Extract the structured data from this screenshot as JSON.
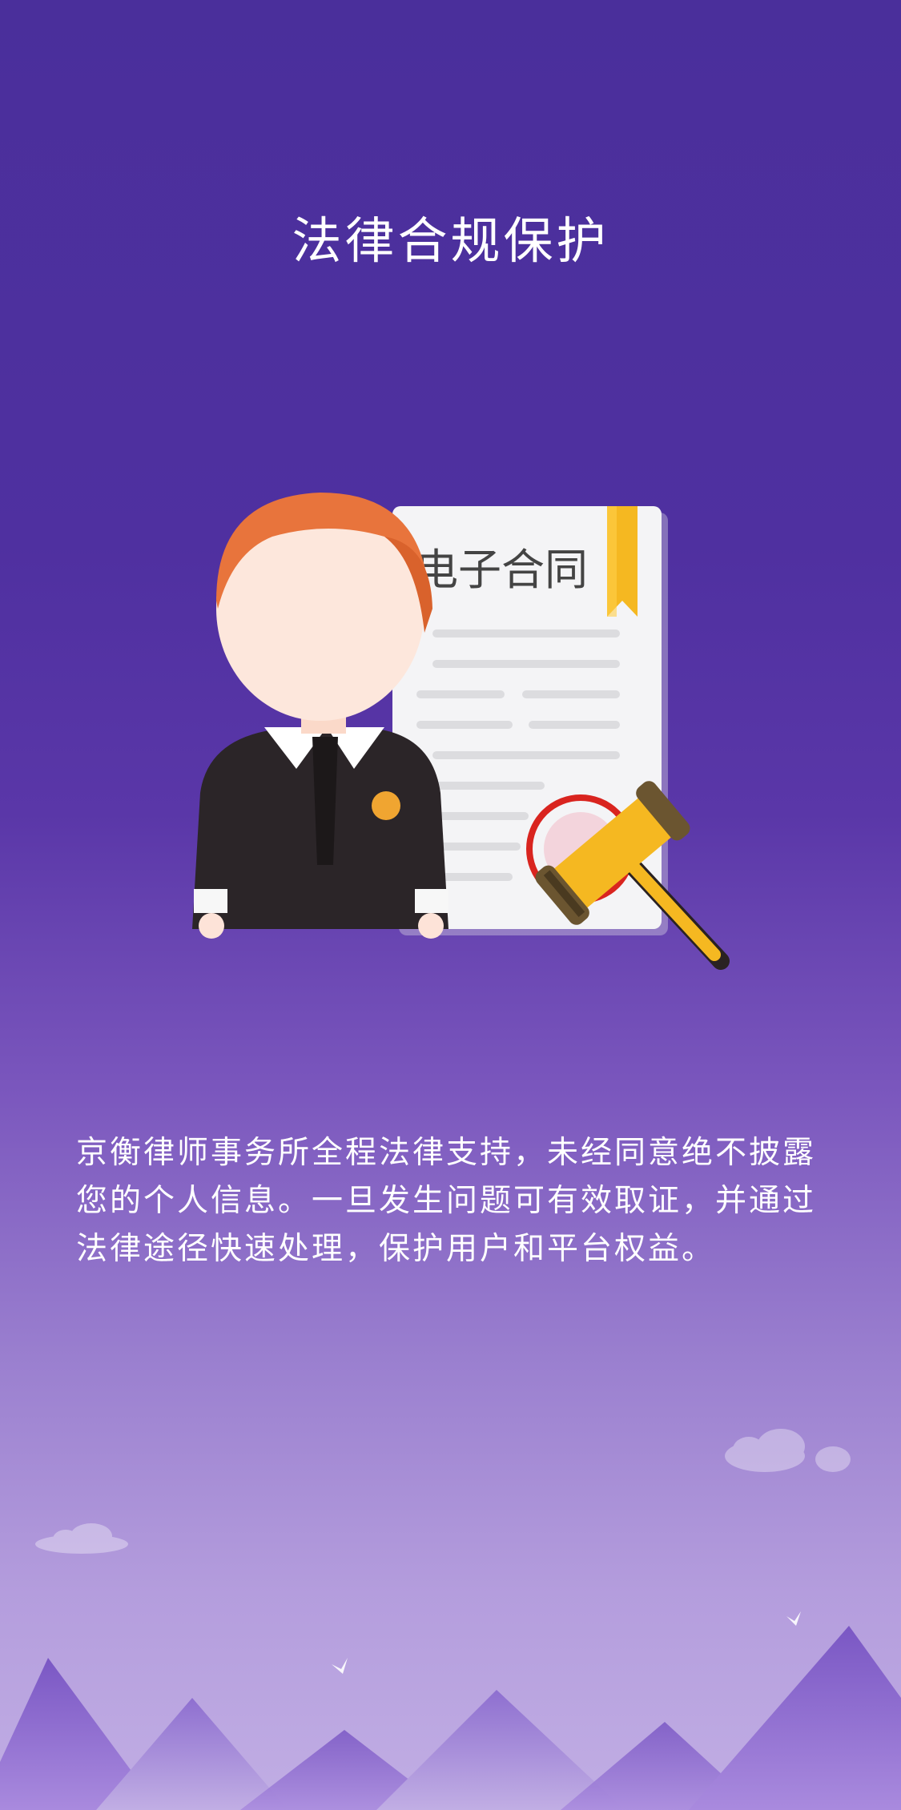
{
  "page": {
    "title": "法律合规保护",
    "description": "京衡律师事务所全程法律支持，未经同意绝不披露您的个人信息。一旦发生问题可有效取证，并通过法律途径快速处理，保护用户和平台权益。"
  },
  "illustration": {
    "contract_label": "电子合同",
    "icons": [
      "lawyer-icon",
      "contract-document-icon",
      "bookmark-icon",
      "seal-stamp-icon",
      "gavel-icon"
    ]
  },
  "decorations": {
    "icons": [
      "cloud-icon",
      "bird-icon",
      "mountains-icon"
    ]
  },
  "colors": {
    "background_top": "#4a2f9b",
    "background_bottom": "#c1aee4",
    "hair": "#e8743c",
    "gavel": "#f5b821",
    "seal": "#d9241f"
  }
}
